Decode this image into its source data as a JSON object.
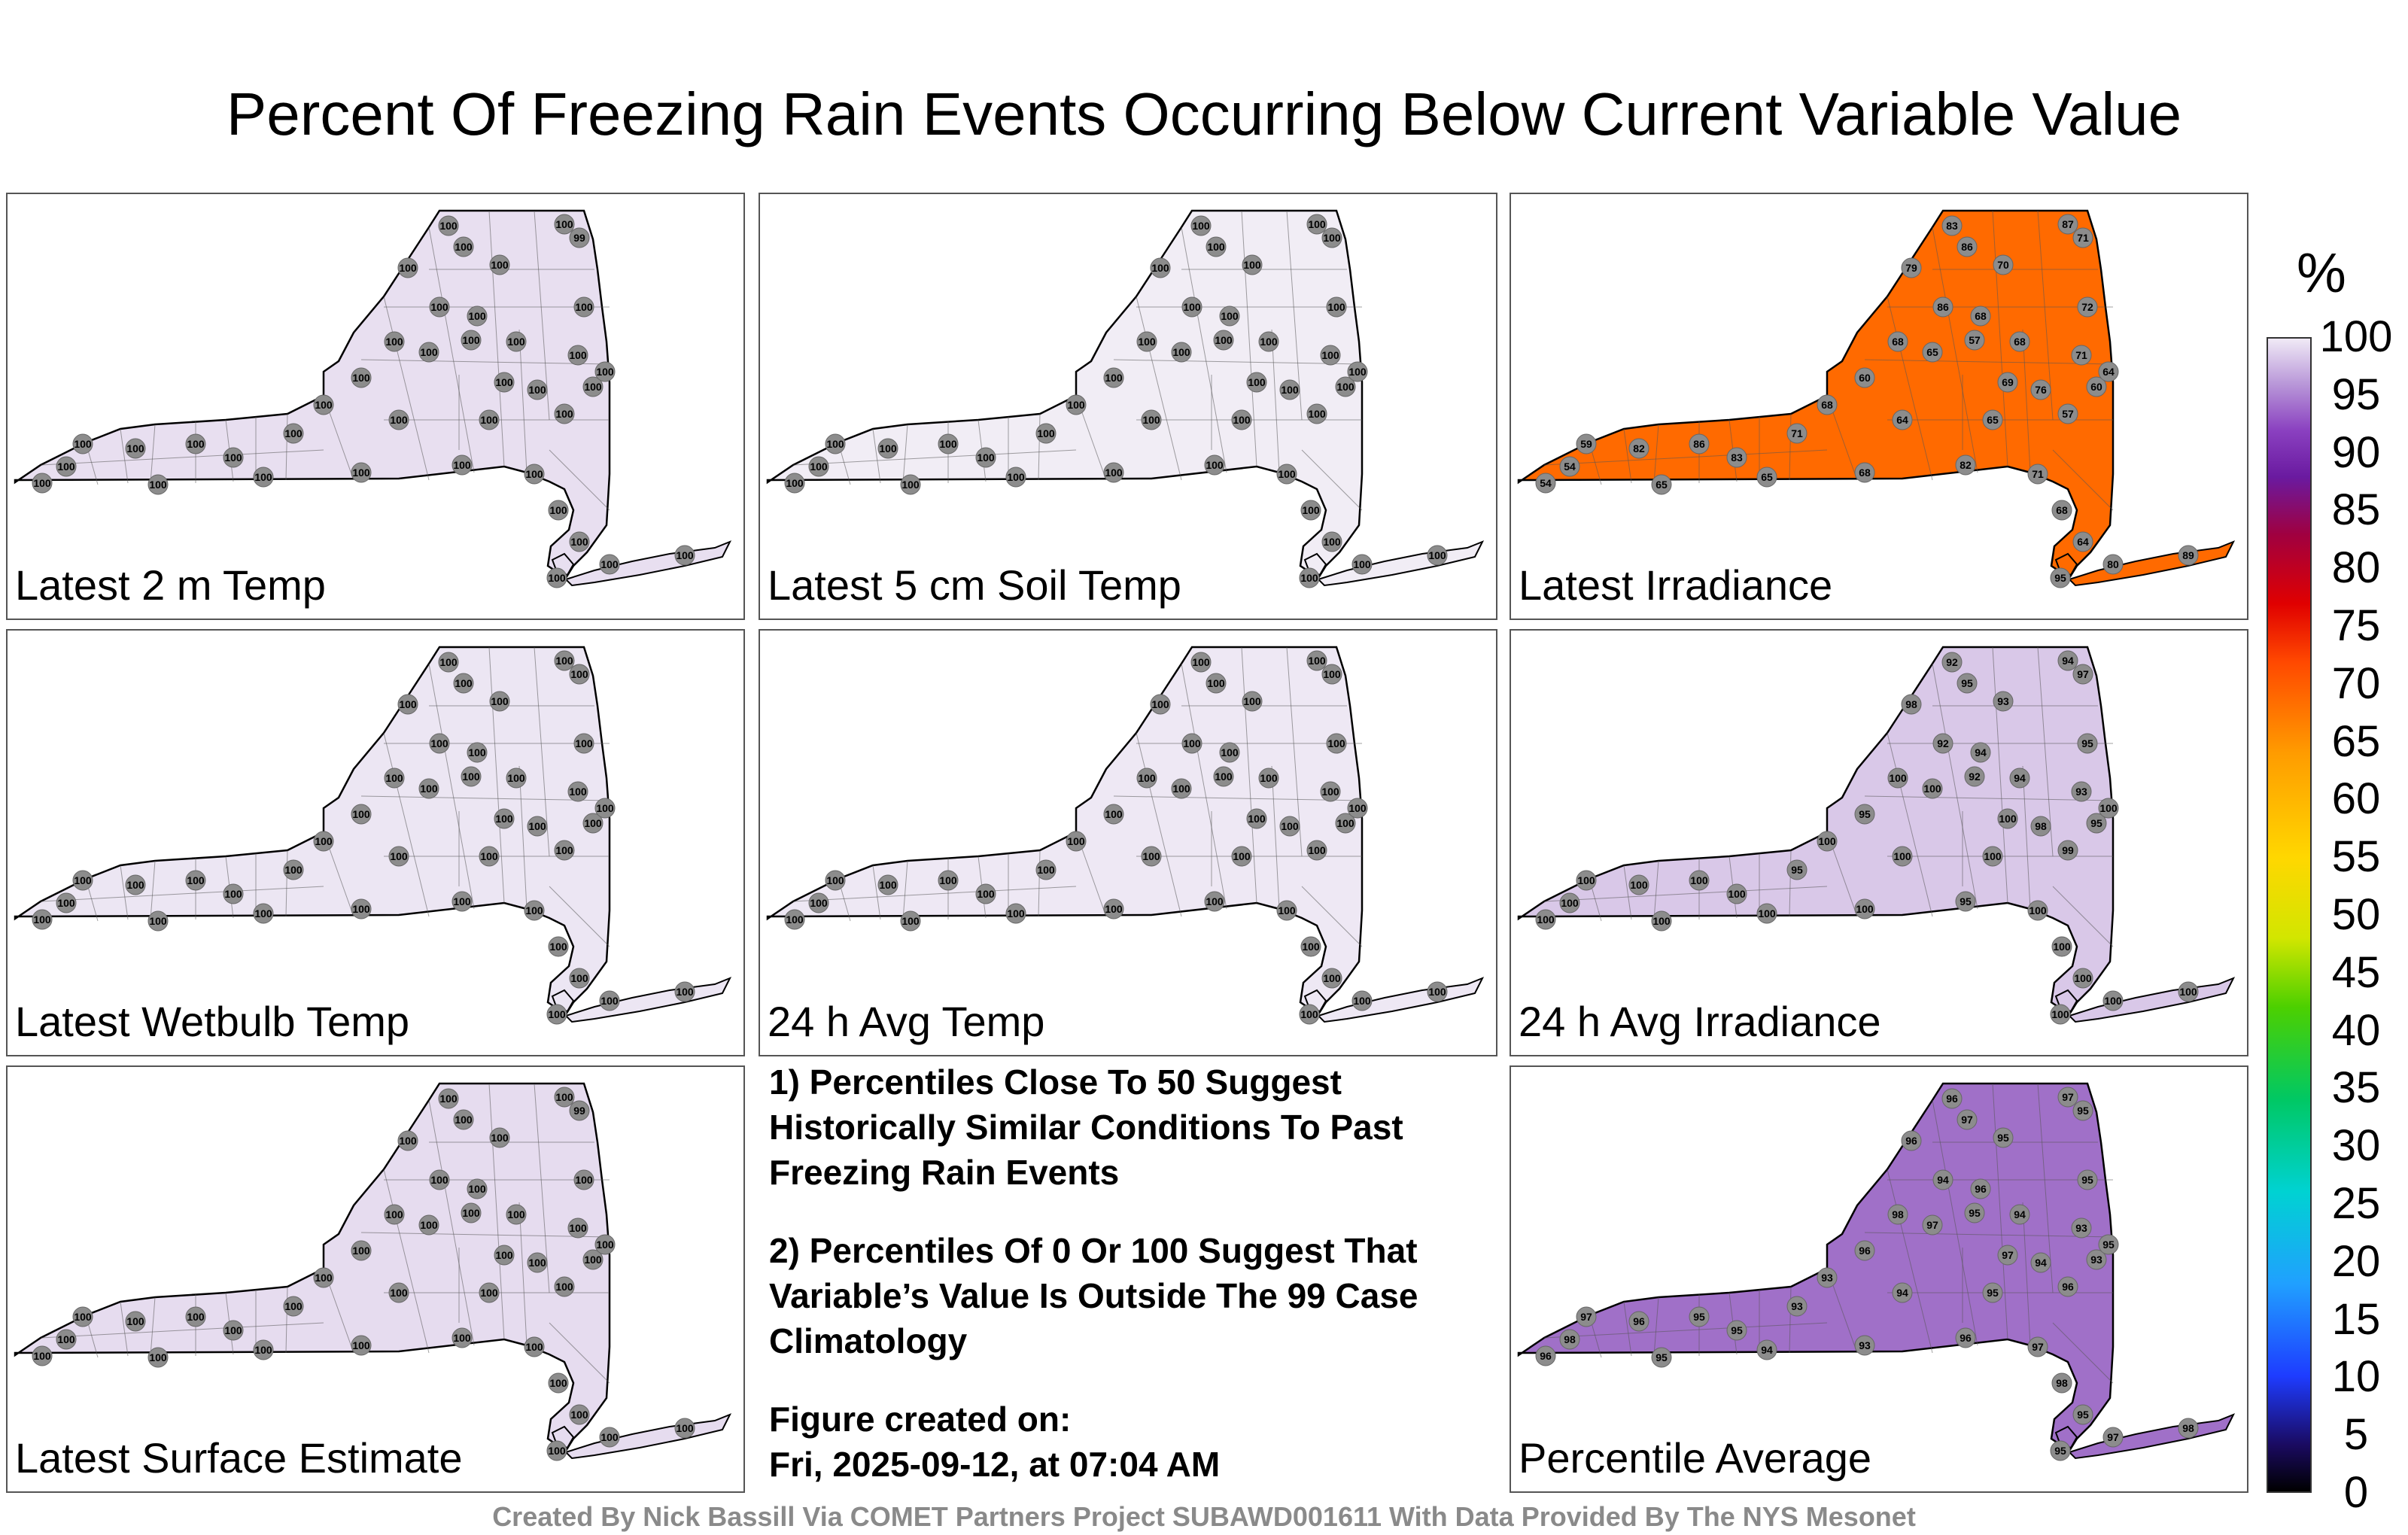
{
  "title": "Percent Of Freezing Rain Events Occurring Below Current Variable Value",
  "panels": [
    {
      "label": "Latest 2 m Temp",
      "fill": "#e8dff0",
      "station_values": [
        "100",
        "100",
        "100",
        "99",
        "100",
        "100",
        "100",
        "100",
        "100",
        "100",
        "100",
        "100",
        "100",
        "100",
        "100",
        "100",
        "100",
        "100",
        "100",
        "100",
        "100",
        "100",
        "100",
        "100",
        "100",
        "100",
        "100",
        "100",
        "100",
        "100",
        "100",
        "100",
        "100",
        "100",
        "100",
        "100",
        "100",
        "100",
        "100",
        "100"
      ]
    },
    {
      "label": "Latest 5 cm Soil Temp",
      "fill": "#f1edf5",
      "station_values": [
        "100",
        "100",
        "100",
        "100",
        "100",
        "100",
        "100",
        "100",
        "100",
        "100",
        "100",
        "100",
        "100",
        "100",
        "100",
        "100",
        "100",
        "100",
        "100",
        "100",
        "100",
        "100",
        "100",
        "100",
        "100",
        "100",
        "100",
        "100",
        "100",
        "100",
        "100",
        "100",
        "100",
        "100",
        "100",
        "100",
        "100",
        "100",
        "100",
        "100"
      ]
    },
    {
      "label": "Latest Irradiance",
      "fill": "#ff6a00",
      "station_values": [
        "83",
        "86",
        "87",
        "71",
        "70",
        "68",
        "86",
        "79",
        "72",
        "71",
        "68",
        "57",
        "65",
        "60",
        "68",
        "69",
        "76",
        "60",
        "64",
        "57",
        "65",
        "64",
        "68",
        "71",
        "83",
        "86",
        "82",
        "59",
        "54",
        "54",
        "65",
        "65",
        "68",
        "82",
        "71",
        "68",
        "64",
        "80",
        "89",
        "95"
      ]
    },
    {
      "label": "Latest Wetbulb Temp",
      "fill": "#ece6f3",
      "station_values": [
        "100",
        "100",
        "100",
        "100",
        "100",
        "100",
        "100",
        "100",
        "100",
        "100",
        "100",
        "100",
        "100",
        "100",
        "100",
        "100",
        "100",
        "100",
        "100",
        "100",
        "100",
        "100",
        "100",
        "100",
        "100",
        "100",
        "100",
        "100",
        "100",
        "100",
        "100",
        "100",
        "100",
        "100",
        "100",
        "100",
        "100",
        "100",
        "100",
        "100"
      ]
    },
    {
      "label": "24 h Avg Temp",
      "fill": "#eee8f4",
      "station_values": [
        "100",
        "100",
        "100",
        "100",
        "100",
        "100",
        "100",
        "100",
        "100",
        "100",
        "100",
        "100",
        "100",
        "100",
        "100",
        "100",
        "100",
        "100",
        "100",
        "100",
        "100",
        "100",
        "100",
        "100",
        "100",
        "100",
        "100",
        "100",
        "100",
        "100",
        "100",
        "100",
        "100",
        "100",
        "100",
        "100",
        "100",
        "100",
        "100",
        "100"
      ]
    },
    {
      "label": "24 h Avg Irradiance",
      "fill": "#d9c8e8",
      "station_values": [
        "92",
        "95",
        "94",
        "97",
        "93",
        "94",
        "92",
        "98",
        "95",
        "93",
        "94",
        "92",
        "100",
        "95",
        "100",
        "100",
        "98",
        "95",
        "100",
        "99",
        "100",
        "100",
        "100",
        "95",
        "100",
        "100",
        "100",
        "100",
        "100",
        "100",
        "100",
        "100",
        "100",
        "95",
        "100",
        "100",
        "100",
        "100",
        "100",
        "100"
      ]
    },
    {
      "label": "Latest Surface Estimate",
      "fill": "#e6dcef",
      "station_values": [
        "100",
        "100",
        "100",
        "99",
        "100",
        "100",
        "100",
        "100",
        "100",
        "100",
        "100",
        "100",
        "100",
        "100",
        "100",
        "100",
        "100",
        "100",
        "100",
        "100",
        "100",
        "100",
        "100",
        "100",
        "100",
        "100",
        "100",
        "100",
        "100",
        "100",
        "100",
        "100",
        "100",
        "100",
        "100",
        "100",
        "100",
        "100",
        "100",
        "100"
      ]
    },
    {
      "label": "Percentile Average",
      "fill": "#a070c8",
      "station_values": [
        "96",
        "97",
        "97",
        "95",
        "95",
        "96",
        "94",
        "96",
        "95",
        "93",
        "94",
        "95",
        "97",
        "96",
        "98",
        "97",
        "94",
        "93",
        "95",
        "96",
        "95",
        "94",
        "93",
        "93",
        "95",
        "95",
        "96",
        "97",
        "98",
        "96",
        "95",
        "94",
        "93",
        "96",
        "97",
        "98",
        "95",
        "97",
        "98",
        "95"
      ]
    }
  ],
  "notes": {
    "note1": "1) Percentiles Close To 50 Suggest Historically Similar Conditions To Past Freezing Rain Events",
    "note2": "2) Percentiles Of 0 Or 100 Suggest That Variable’s Value Is Outside The 99 Case Climatology",
    "created_label": "Figure created on:",
    "created_date": "Fri, 2025-09-12, at 07:04 AM"
  },
  "colorbar": {
    "unit": "%",
    "ticks": [
      "100",
      "95",
      "90",
      "85",
      "80",
      "75",
      "70",
      "65",
      "60",
      "55",
      "50",
      "45",
      "40",
      "35",
      "30",
      "25",
      "20",
      "15",
      "10",
      "5",
      "0"
    ]
  },
  "credit": "Created By Nick Bassill Via COMET Partners Project SUBAWD001611 With Data Provided By The NYS Mesonet"
}
